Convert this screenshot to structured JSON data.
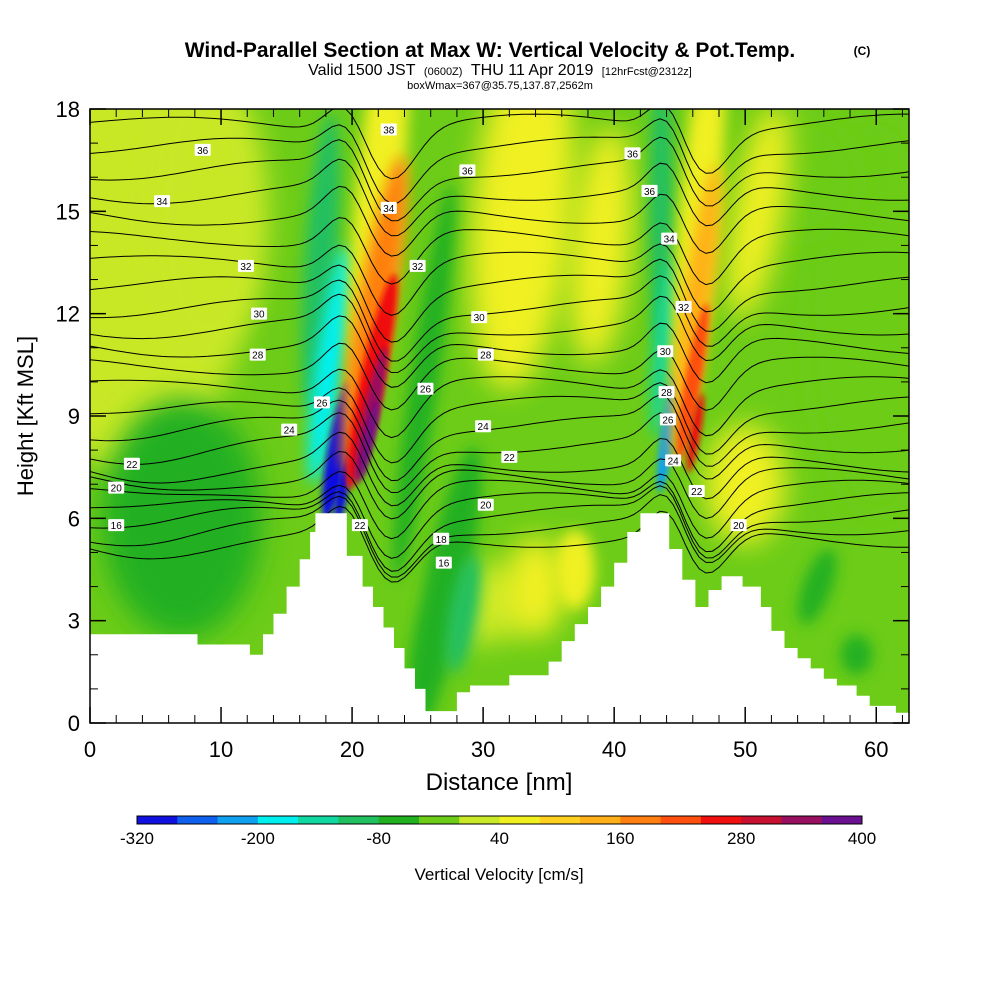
{
  "chart_data": {
    "type": "heatmap",
    "title_parts": {
      "main": "Wind-Parallel Section at Max W: Vertical Velocity & Pot.Temp.",
      "copyright": "(C)"
    },
    "subtitle_parts": {
      "valid": "Valid 1500 JST",
      "utc": "(0600Z)",
      "date": "THU 11 Apr 2019",
      "forecast": "[12hrFcst@2312z]"
    },
    "info_line": "boxWmax=367@35.75,137.87,2562m",
    "xlabel": "Distance [nm]",
    "ylabel": "Height [Kft MSL]",
    "xlim": [
      0,
      62.5
    ],
    "ylim": [
      0,
      18
    ],
    "x_ticks": [
      {
        "value": 0,
        "label": "0"
      },
      {
        "value": 10,
        "label": "10"
      },
      {
        "value": 20,
        "label": "20"
      },
      {
        "value": 30,
        "label": "30"
      },
      {
        "value": 40,
        "label": "40"
      },
      {
        "value": 50,
        "label": "50"
      },
      {
        "value": 60,
        "label": "60"
      }
    ],
    "y_ticks": [
      {
        "value": 0,
        "label": "0"
      },
      {
        "value": 3,
        "label": "3"
      },
      {
        "value": 6,
        "label": "6"
      },
      {
        "value": 9,
        "label": "9"
      },
      {
        "value": 12,
        "label": "12"
      },
      {
        "value": 15,
        "label": "15"
      },
      {
        "value": 18,
        "label": "18"
      }
    ],
    "colorbar": {
      "label": "Vertical Velocity [cm/s]",
      "min": -320,
      "max": 400,
      "step": 40,
      "colors": [
        "#1010e0",
        "#1060f0",
        "#10a0f0",
        "#00f0f0",
        "#10d8a0",
        "#20c060",
        "#20b020",
        "#6ccc18",
        "#c8e828",
        "#f0f020",
        "#ffd020",
        "#ffb018",
        "#ff8010",
        "#ff5010",
        "#f01010",
        "#c81030",
        "#9a1060",
        "#6a1090"
      ],
      "tick_labels": [
        {
          "value": -320,
          "label": "-320"
        },
        {
          "value": -200,
          "label": "-200"
        },
        {
          "value": -80,
          "label": "-80"
        },
        {
          "value": 40,
          "label": "40"
        },
        {
          "value": 160,
          "label": "160"
        },
        {
          "value": 280,
          "label": "280"
        },
        {
          "value": 400,
          "label": "400"
        }
      ]
    },
    "terrain_kft": [
      [
        0,
        2.6
      ],
      [
        8.2,
        2.6
      ],
      [
        8.2,
        2.3
      ],
      [
        12.2,
        2.3
      ],
      [
        12.2,
        2.0
      ],
      [
        13.2,
        2.0
      ],
      [
        13.2,
        2.6
      ],
      [
        14,
        2.6
      ],
      [
        14,
        3.2
      ],
      [
        15,
        3.2
      ],
      [
        15,
        4.0
      ],
      [
        16,
        4.0
      ],
      [
        16,
        4.8
      ],
      [
        16.8,
        4.8
      ],
      [
        16.8,
        5.6
      ],
      [
        17.2,
        5.6
      ],
      [
        17.2,
        6.15
      ],
      [
        19.6,
        6.15
      ],
      [
        19.6,
        4.9
      ],
      [
        20.8,
        4.9
      ],
      [
        20.8,
        4.0
      ],
      [
        21.6,
        4.0
      ],
      [
        21.6,
        3.4
      ],
      [
        22.4,
        3.4
      ],
      [
        22.4,
        2.8
      ],
      [
        23.2,
        2.8
      ],
      [
        23.2,
        2.2
      ],
      [
        24,
        2.2
      ],
      [
        24,
        1.6
      ],
      [
        24.8,
        1.6
      ],
      [
        24.8,
        1.0
      ],
      [
        25.6,
        1.0
      ],
      [
        25.6,
        0.35
      ],
      [
        28,
        0.35
      ],
      [
        28,
        0.9
      ],
      [
        29,
        0.9
      ],
      [
        29,
        1.1
      ],
      [
        32,
        1.1
      ],
      [
        32,
        1.4
      ],
      [
        35,
        1.4
      ],
      [
        35,
        1.8
      ],
      [
        36,
        1.8
      ],
      [
        36,
        2.4
      ],
      [
        37,
        2.4
      ],
      [
        37,
        2.9
      ],
      [
        38,
        2.9
      ],
      [
        38,
        3.4
      ],
      [
        39,
        3.4
      ],
      [
        39,
        4.0
      ],
      [
        40,
        4.0
      ],
      [
        40,
        4.7
      ],
      [
        41,
        4.7
      ],
      [
        41,
        5.6
      ],
      [
        42,
        5.6
      ],
      [
        42,
        6.15
      ],
      [
        44.2,
        6.15
      ],
      [
        44.2,
        5.1
      ],
      [
        45.2,
        5.1
      ],
      [
        45.2,
        4.2
      ],
      [
        46.2,
        4.2
      ],
      [
        46.2,
        3.4
      ],
      [
        47.2,
        3.4
      ],
      [
        47.2,
        3.9
      ],
      [
        48.2,
        3.9
      ],
      [
        48.2,
        4.3
      ],
      [
        49.8,
        4.3
      ],
      [
        49.8,
        4.0
      ],
      [
        51.2,
        4.0
      ],
      [
        51.2,
        3.4
      ],
      [
        52,
        3.4
      ],
      [
        52,
        2.7
      ],
      [
        53,
        2.7
      ],
      [
        53,
        2.2
      ],
      [
        54,
        2.2
      ],
      [
        54,
        1.9
      ],
      [
        55,
        1.9
      ],
      [
        55,
        1.6
      ],
      [
        56,
        1.6
      ],
      [
        56,
        1.3
      ],
      [
        57,
        1.3
      ],
      [
        57,
        1.1
      ],
      [
        58.5,
        1.1
      ],
      [
        58.5,
        0.8
      ],
      [
        59.5,
        0.8
      ],
      [
        59.5,
        0.5
      ],
      [
        61.5,
        0.5
      ],
      [
        61.5,
        0.3
      ],
      [
        62.5,
        0.3
      ]
    ],
    "theta_levels": [
      16,
      17,
      18,
      19,
      20,
      21,
      22,
      23,
      24,
      25,
      26,
      27,
      28,
      29,
      30,
      31,
      32,
      33,
      34,
      35,
      36,
      37,
      38
    ],
    "theta_labels": [
      {
        "text": "16",
        "x": 2.0,
        "y": 5.8
      },
      {
        "text": "20",
        "x": 2.0,
        "y": 6.9
      },
      {
        "text": "22",
        "x": 3.2,
        "y": 7.6
      },
      {
        "text": "24",
        "x": 15.2,
        "y": 8.6
      },
      {
        "text": "26",
        "x": 17.7,
        "y": 9.4
      },
      {
        "text": "28",
        "x": 12.8,
        "y": 10.8
      },
      {
        "text": "30",
        "x": 12.9,
        "y": 12.0
      },
      {
        "text": "32",
        "x": 11.9,
        "y": 13.4
      },
      {
        "text": "34",
        "x": 5.5,
        "y": 15.3
      },
      {
        "text": "36",
        "x": 8.6,
        "y": 16.8
      },
      {
        "text": "38",
        "x": 22.8,
        "y": 17.4
      },
      {
        "text": "34",
        "x": 22.8,
        "y": 15.1
      },
      {
        "text": "36",
        "x": 28.8,
        "y": 16.2
      },
      {
        "text": "32",
        "x": 25.0,
        "y": 13.4
      },
      {
        "text": "30",
        "x": 29.7,
        "y": 11.9
      },
      {
        "text": "28",
        "x": 30.2,
        "y": 10.8
      },
      {
        "text": "26",
        "x": 25.6,
        "y": 9.8
      },
      {
        "text": "24",
        "x": 30.0,
        "y": 8.7
      },
      {
        "text": "22",
        "x": 32.0,
        "y": 7.8
      },
      {
        "text": "20",
        "x": 30.2,
        "y": 6.4
      },
      {
        "text": "22",
        "x": 20.6,
        "y": 5.8
      },
      {
        "text": "18",
        "x": 26.8,
        "y": 5.4
      },
      {
        "text": "16",
        "x": 27.0,
        "y": 4.7
      },
      {
        "text": "36",
        "x": 41.4,
        "y": 16.7
      },
      {
        "text": "36",
        "x": 42.7,
        "y": 15.6
      },
      {
        "text": "34",
        "x": 44.2,
        "y": 14.2
      },
      {
        "text": "32",
        "x": 45.3,
        "y": 12.2
      },
      {
        "text": "30",
        "x": 43.9,
        "y": 10.9
      },
      {
        "text": "28",
        "x": 44.0,
        "y": 9.7
      },
      {
        "text": "26",
        "x": 44.1,
        "y": 8.9
      },
      {
        "text": "24",
        "x": 44.5,
        "y": 7.7
      },
      {
        "text": "22",
        "x": 46.3,
        "y": 6.8
      },
      {
        "text": "20",
        "x": 49.5,
        "y": 5.8
      }
    ],
    "w_features": [
      {
        "name": "west-downdraft",
        "x": 18.5,
        "y": 8.2,
        "value": -320
      },
      {
        "name": "west-updraft",
        "x": 21.4,
        "y": 10.0,
        "value": 367
      },
      {
        "name": "east-downdraft",
        "x": 43.8,
        "y": 8.2,
        "value": -240
      },
      {
        "name": "east-updraft",
        "x": 46.0,
        "y": 10.8,
        "value": 240
      },
      {
        "name": "valley-downdraft",
        "x": 27.0,
        "y": 3.5,
        "value": -60
      }
    ],
    "grid": false
  }
}
